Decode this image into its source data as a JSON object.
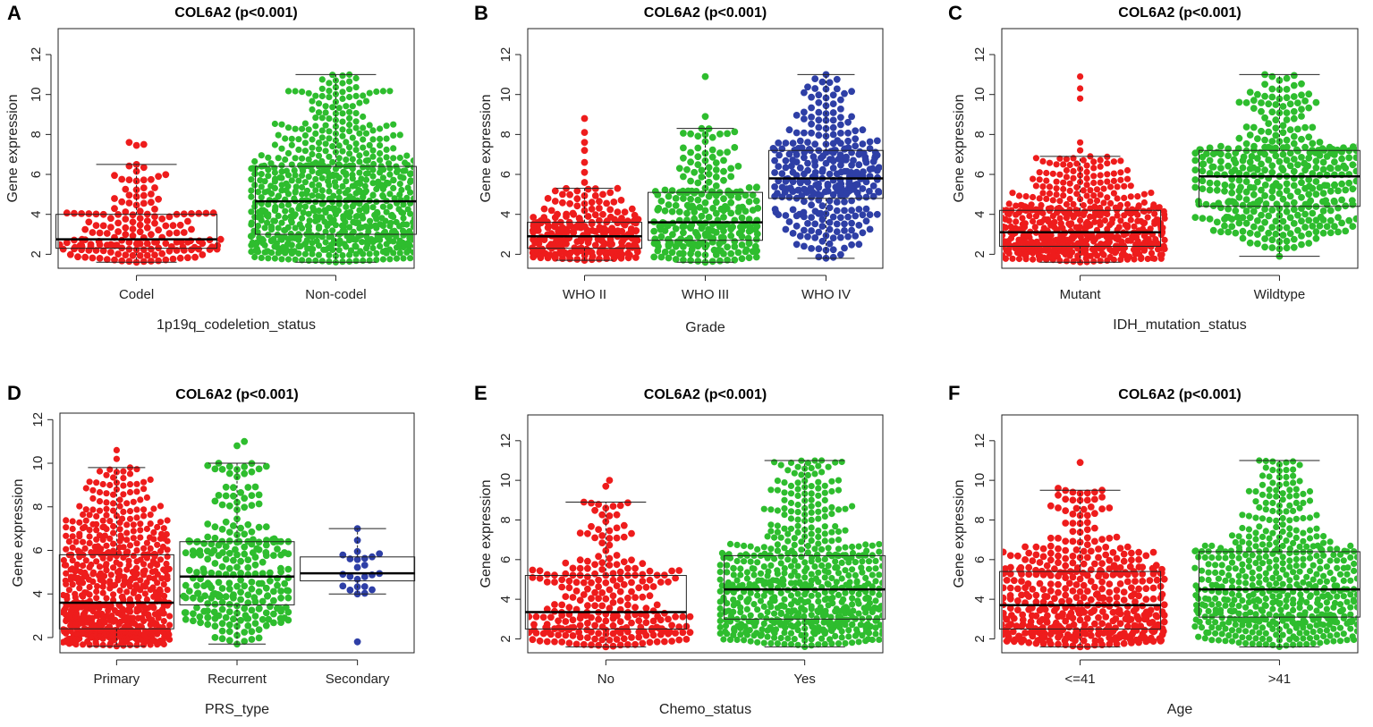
{
  "chart_data": [
    {
      "panel": "A",
      "type": "box-beeswarm",
      "title": "COL6A2 (p<0.001)",
      "xlabel": "1p19q_codeletion_status",
      "ylabel": "Gene expression",
      "ylim": [
        1.3,
        13.3
      ],
      "yticks": [
        2,
        4,
        6,
        8,
        10,
        12
      ],
      "groups": [
        {
          "name": "Codel",
          "color": "#ee1c1c",
          "n": 170,
          "min": 1.6,
          "q1": 2.3,
          "median": 2.75,
          "q3": 4.0,
          "max": 6.5,
          "outliers": [
            7.45,
            7.6,
            7.5
          ]
        },
        {
          "name": "Non-codel",
          "color": "#2ebd2e",
          "n": 750,
          "min": 1.6,
          "q1": 3.0,
          "median": 4.65,
          "q3": 6.4,
          "max": 11.0,
          "outliers": []
        }
      ]
    },
    {
      "panel": "B",
      "type": "box-beeswarm",
      "title": "COL6A2 (p<0.001)",
      "xlabel": "Grade",
      "ylabel": "Gene expression",
      "ylim": [
        1.3,
        13.3
      ],
      "yticks": [
        2,
        4,
        6,
        8,
        10,
        12
      ],
      "groups": [
        {
          "name": "WHO II",
          "color": "#ee1c1c",
          "n": 260,
          "min": 1.7,
          "q1": 2.3,
          "median": 2.9,
          "q3": 3.6,
          "max": 5.3,
          "outliers": [
            5.6,
            6.1,
            6.6,
            7.2,
            7.6,
            8.1,
            8.8
          ]
        },
        {
          "name": "WHO III",
          "color": "#2ebd2e",
          "n": 260,
          "min": 1.6,
          "q1": 2.7,
          "median": 3.6,
          "q3": 5.1,
          "max": 8.3,
          "outliers": [
            8.9,
            10.9
          ]
        },
        {
          "name": "WHO IV",
          "color": "#2e3fa6",
          "n": 320,
          "min": 1.8,
          "q1": 4.8,
          "median": 5.8,
          "q3": 7.2,
          "max": 11.0,
          "outliers": []
        }
      ]
    },
    {
      "panel": "C",
      "type": "box-beeswarm",
      "title": "COL6A2 (p<0.001)",
      "xlabel": "IDH_mutation_status",
      "ylabel": "Gene expression",
      "ylim": [
        1.3,
        13.3
      ],
      "yticks": [
        2,
        4,
        6,
        8,
        10,
        12
      ],
      "groups": [
        {
          "name": "Mutant",
          "color": "#ee1c1c",
          "n": 600,
          "min": 1.6,
          "q1": 2.4,
          "median": 3.1,
          "q3": 4.2,
          "max": 6.9,
          "outliers": [
            7.2,
            7.6,
            9.8,
            10.3,
            10.9
          ]
        },
        {
          "name": "Wildtype",
          "color": "#2ebd2e",
          "n": 400,
          "min": 1.9,
          "q1": 4.4,
          "median": 5.9,
          "q3": 7.2,
          "max": 11.0,
          "outliers": []
        }
      ]
    },
    {
      "panel": "D",
      "type": "box-beeswarm",
      "title": "COL6A2 (p<0.001)",
      "xlabel": "PRS_type",
      "ylabel": "Gene expression",
      "ylim": [
        1.3,
        12.3
      ],
      "yticks": [
        2,
        4,
        6,
        8,
        10,
        12
      ],
      "groups": [
        {
          "name": "Primary",
          "color": "#ee1c1c",
          "n": 700,
          "min": 1.6,
          "q1": 2.4,
          "median": 3.6,
          "q3": 5.8,
          "max": 9.8,
          "outliers": [
            10.2,
            10.6
          ]
        },
        {
          "name": "Recurrent",
          "color": "#2ebd2e",
          "n": 260,
          "min": 1.7,
          "q1": 3.5,
          "median": 4.8,
          "q3": 6.4,
          "max": 10.0,
          "outliers": [
            10.8,
            11.0
          ]
        },
        {
          "name": "Secondary",
          "color": "#2e3fa6",
          "n": 22,
          "min": 4.0,
          "q1": 4.6,
          "median": 4.95,
          "q3": 5.7,
          "max": 7.0,
          "outliers": [
            1.8
          ]
        }
      ]
    },
    {
      "panel": "E",
      "type": "box-beeswarm",
      "title": "COL6A2 (p<0.001)",
      "xlabel": "Chemo_status",
      "ylabel": "Gene expression",
      "ylim": [
        1.3,
        13.3
      ],
      "yticks": [
        2,
        4,
        6,
        8,
        10,
        12
      ],
      "groups": [
        {
          "name": "No",
          "color": "#ee1c1c",
          "n": 260,
          "min": 1.6,
          "q1": 2.5,
          "median": 3.35,
          "q3": 5.2,
          "max": 8.9,
          "outliers": [
            9.7,
            10.0
          ]
        },
        {
          "name": "Yes",
          "color": "#2ebd2e",
          "n": 650,
          "min": 1.6,
          "q1": 3.0,
          "median": 4.5,
          "q3": 6.2,
          "max": 11.0,
          "outliers": []
        }
      ]
    },
    {
      "panel": "F",
      "type": "box-beeswarm",
      "title": "COL6A2 (p<0.001)",
      "xlabel": "Age",
      "ylabel": "Gene expression",
      "ylim": [
        1.3,
        13.3
      ],
      "yticks": [
        2,
        4,
        6,
        8,
        10,
        12
      ],
      "groups": [
        {
          "name": "<=41",
          "color": "#ee1c1c",
          "n": 480,
          "min": 1.6,
          "q1": 2.5,
          "median": 3.7,
          "q3": 5.4,
          "max": 9.5,
          "outliers": [
            9.6,
            10.9
          ]
        },
        {
          "name": ">41",
          "color": "#2ebd2e",
          "n": 550,
          "min": 1.6,
          "q1": 3.1,
          "median": 4.5,
          "q3": 6.4,
          "max": 11.0,
          "outliers": []
        }
      ]
    }
  ]
}
